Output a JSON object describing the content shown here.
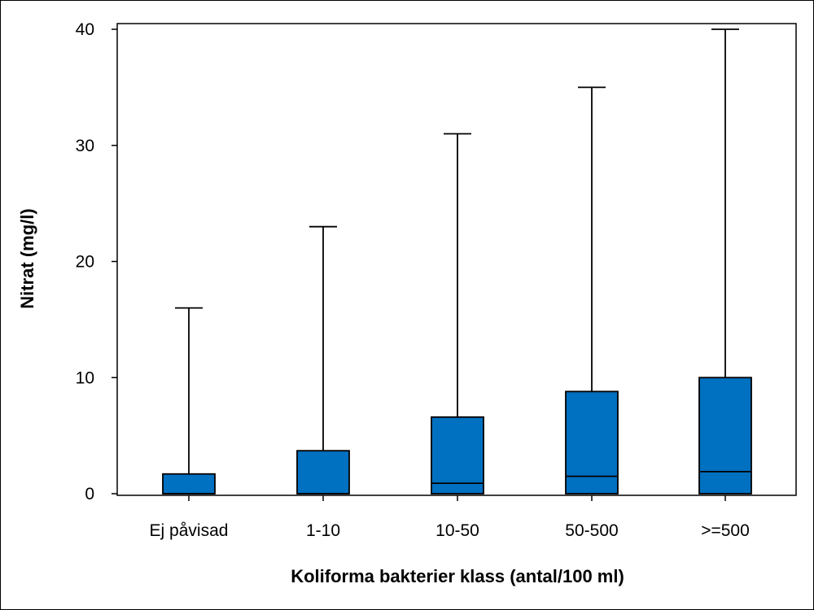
{
  "chart_data": {
    "type": "box",
    "title": "",
    "xlabel": "Koliforma bakterier klass (antal/100 ml)",
    "ylabel": "Nitrat (mg/l)",
    "ylim": [
      0,
      40
    ],
    "yticks": [
      0,
      10,
      20,
      30,
      40
    ],
    "grid": false,
    "box_color": "#0070C0",
    "categories": [
      "Ej påvisad",
      "1-10",
      "10-50",
      "50-500",
      ">=500"
    ],
    "boxes": [
      {
        "category": "Ej påvisad",
        "min": 0,
        "q1": 0,
        "median": 0,
        "q3": 1.7,
        "max": 16
      },
      {
        "category": "1-10",
        "min": 0,
        "q1": 0,
        "median": 0,
        "q3": 3.7,
        "max": 23
      },
      {
        "category": "10-50",
        "min": 0,
        "q1": 0,
        "median": 0.9,
        "q3": 6.6,
        "max": 31
      },
      {
        "category": "50-500",
        "min": 0,
        "q1": 0,
        "median": 1.5,
        "q3": 8.8,
        "max": 35
      },
      {
        "category": ">=500",
        "min": 0,
        "q1": 0,
        "median": 1.9,
        "q3": 10,
        "max": 40
      }
    ]
  }
}
